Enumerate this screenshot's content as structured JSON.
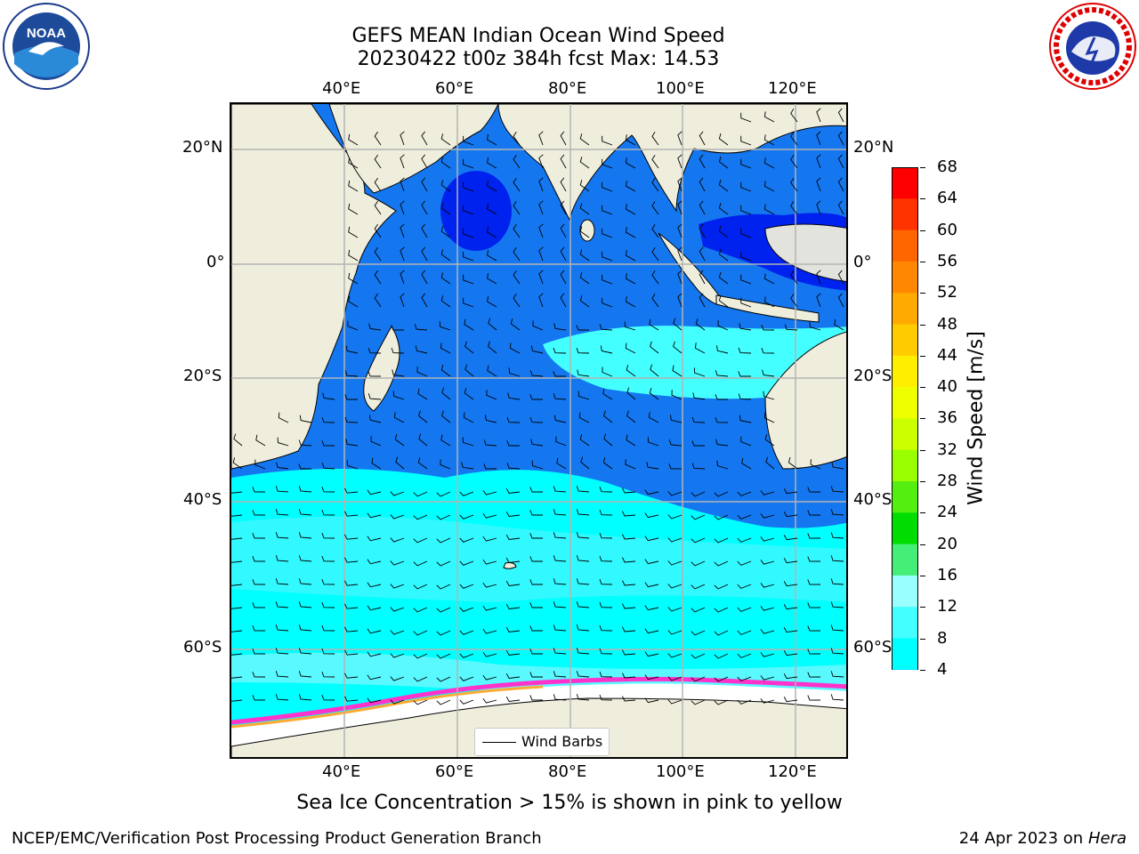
{
  "title": {
    "line1": "GEFS MEAN Indian Ocean Wind Speed",
    "line2": "20230422 t00z 384h fcst   Max: 14.53"
  },
  "axes": {
    "lon_top": [
      "40°E",
      "60°E",
      "80°E",
      "100°E",
      "120°E"
    ],
    "lon_bottom": [
      "40°E",
      "60°E",
      "80°E",
      "100°E",
      "120°E"
    ],
    "lat_left": [
      "20°N",
      "0°",
      "20°S",
      "40°S",
      "60°S"
    ],
    "lat_right": [
      "20°N",
      "0°",
      "20°S",
      "40°S",
      "60°S"
    ]
  },
  "legend": {
    "label": "Wind Barbs"
  },
  "colorbar": {
    "label": "Wind Speed [m/s]",
    "ticks": [
      "68",
      "64",
      "60",
      "56",
      "52",
      "48",
      "44",
      "40",
      "36",
      "32",
      "28",
      "24",
      "20",
      "16",
      "12",
      "8",
      "4"
    ],
    "colors": [
      "#ff0000",
      "#ff3300",
      "#ff6600",
      "#ff8800",
      "#ffaa00",
      "#ffcc00",
      "#ffee00",
      "#eeff00",
      "#ccff00",
      "#99ff00",
      "#55ee11",
      "#00dd00",
      "#44ee77",
      "#99ffff",
      "#44ffff",
      "#00ffff",
      "#0099ff",
      "#0022ff"
    ]
  },
  "footnote": "Sea Ice Concentration > 15% is shown in pink to yellow",
  "credit": "NCEP/EMC/Verification Post Processing Product Generation Branch",
  "date": {
    "text": "24 Apr 2023 on ",
    "machine": "Hera"
  },
  "logos": {
    "left": "NOAA",
    "right": "NATIONAL WEATHER SERVICE"
  }
}
